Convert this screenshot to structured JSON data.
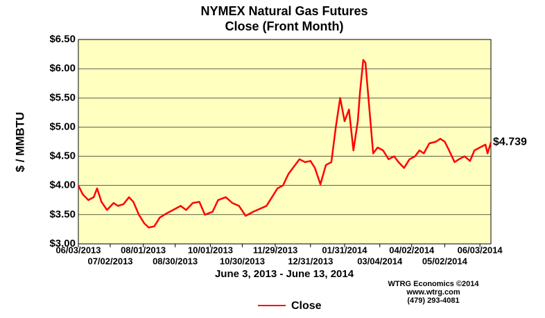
{
  "chart_data": {
    "type": "line",
    "title": "NYMEX Natural Gas Futures",
    "subtitle": "Close (Front Month)",
    "y_label": "$ / MMBTU",
    "x_label": "June 3, 2013 - June 13, 2014",
    "credits": [
      "WTRG Economics  ©2014",
      "www.wtrg.com",
      "(479) 293-4081"
    ],
    "xlim": [
      "06/03/2013",
      "06/13/2014"
    ],
    "xticks": [
      "06/03/2013",
      "07/02/2013",
      "08/01/2013",
      "08/30/2013",
      "10/01/2013",
      "10/30/2013",
      "11/29/2013",
      "12/31/2013",
      "01/31/2014",
      "03/04/2014",
      "04/02/2014",
      "05/02/2014",
      "06/03/2014"
    ],
    "ylim": [
      3,
      6.5
    ],
    "yticks": [
      {
        "value": 3,
        "label": "$3.00"
      },
      {
        "value": 3.5,
        "label": "$3.50"
      },
      {
        "value": 4,
        "label": "$4.00"
      },
      {
        "value": 4.5,
        "label": "$4.50"
      },
      {
        "value": 5,
        "label": "$5.00"
      },
      {
        "value": 5.5,
        "label": "$5.50"
      },
      {
        "value": 6,
        "label": "$6.00"
      },
      {
        "value": 6.5,
        "label": "$6.50"
      }
    ],
    "grid": true,
    "background": "#ffffc0",
    "x": [
      "06/03/2013",
      "06/07/2013",
      "06/12/2013",
      "06/17/2013",
      "06/20/2013",
      "06/24/2013",
      "06/29/2013",
      "07/05/2013",
      "07/09/2013",
      "07/14/2013",
      "07/19/2013",
      "07/23/2013",
      "07/28/2013",
      "08/02/2013",
      "08/06/2013",
      "08/11/2013",
      "08/16/2013",
      "08/22/2013",
      "08/28/2013",
      "09/04/2013",
      "09/09/2013",
      "09/15/2013",
      "09/21/2013",
      "09/26/2013",
      "10/03/2013",
      "10/08/2013",
      "10/15/2013",
      "10/21/2013",
      "10/27/2013",
      "11/02/2013",
      "11/09/2013",
      "11/15/2013",
      "11/21/2013",
      "11/26/2013",
      "12/01/2013",
      "12/06/2013",
      "12/11/2013",
      "12/17/2013",
      "12/21/2013",
      "12/26/2013",
      "12/31/2013",
      "01/04/2014",
      "01/09/2014",
      "01/14/2014",
      "01/19/2014",
      "01/23/2014",
      "01/27/2014",
      "01/31/2014",
      "02/04/2014",
      "02/08/2014",
      "02/12/2014",
      "02/14/2014",
      "02/17/2014",
      "02/19/2014",
      "02/23/2014",
      "02/26/2014",
      "03/02/2014",
      "03/07/2014",
      "03/12/2014",
      "03/17/2014",
      "03/21/2014",
      "03/26/2014",
      "03/31/2014",
      "04/05/2014",
      "04/09/2014",
      "04/13/2014",
      "04/18/2014",
      "04/24/2014",
      "04/28/2014",
      "05/02/2014",
      "05/06/2014",
      "05/11/2014",
      "05/15/2014",
      "05/20/2014",
      "05/25/2014",
      "05/29/2014",
      "06/03/2014",
      "06/08/2014",
      "06/10/2014",
      "06/13/2014"
    ],
    "series": [
      {
        "name": "Close",
        "color": "#ff0000",
        "values": [
          4.0,
          3.85,
          3.75,
          3.8,
          3.95,
          3.72,
          3.58,
          3.7,
          3.65,
          3.68,
          3.8,
          3.72,
          3.5,
          3.35,
          3.28,
          3.3,
          3.45,
          3.52,
          3.58,
          3.65,
          3.58,
          3.7,
          3.72,
          3.5,
          3.55,
          3.75,
          3.8,
          3.7,
          3.65,
          3.48,
          3.55,
          3.6,
          3.65,
          3.8,
          3.95,
          4.0,
          4.2,
          4.35,
          4.45,
          4.4,
          4.42,
          4.3,
          4.02,
          4.35,
          4.4,
          5.0,
          5.5,
          5.1,
          5.3,
          4.6,
          5.1,
          5.6,
          6.15,
          6.1,
          5.2,
          4.55,
          4.65,
          4.6,
          4.45,
          4.5,
          4.4,
          4.3,
          4.45,
          4.5,
          4.6,
          4.55,
          4.72,
          4.75,
          4.8,
          4.75,
          4.6,
          4.4,
          4.45,
          4.5,
          4.42,
          4.6,
          4.65,
          4.7,
          4.55,
          4.739
        ]
      }
    ],
    "annotation": {
      "label": "$4.739",
      "x": "06/13/2014",
      "y": 4.739
    }
  }
}
